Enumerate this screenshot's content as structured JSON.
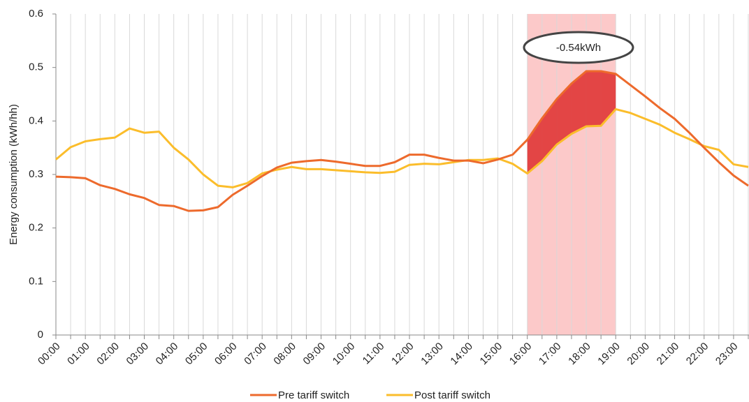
{
  "chart_data": {
    "type": "line",
    "y_label": "Energy consumption (kWh/hh)",
    "categories": [
      "00:00",
      null,
      "01:00",
      null,
      "02:00",
      null,
      "03:00",
      null,
      "04:00",
      null,
      "05:00",
      null,
      "06:00",
      null,
      "07:00",
      null,
      "08:00",
      null,
      "09:00",
      null,
      "10:00",
      null,
      "11:00",
      null,
      "12:00",
      null,
      "13:00",
      null,
      "14:00",
      null,
      "15:00",
      null,
      "16:00",
      null,
      "17:00",
      null,
      "18:00",
      null,
      "19:00",
      null,
      "20:00",
      null,
      "21:00",
      null,
      "22:00",
      null,
      "23:00",
      null
    ],
    "series": [
      {
        "name": "Pre tariff switch",
        "color": "#ed6a2c",
        "values": [
          0.296,
          0.295,
          0.293,
          0.28,
          0.273,
          0.263,
          0.256,
          0.243,
          0.241,
          0.232,
          0.233,
          0.239,
          0.262,
          0.279,
          0.297,
          0.313,
          0.322,
          0.325,
          0.327,
          0.324,
          0.32,
          0.316,
          0.316,
          0.323,
          0.337,
          0.337,
          0.331,
          0.326,
          0.326,
          0.321,
          0.328,
          0.337,
          0.365,
          0.405,
          0.441,
          0.47,
          0.493,
          0.493,
          0.488,
          0.467,
          0.446,
          0.424,
          0.404,
          0.378,
          0.35,
          0.323,
          0.298,
          0.279
        ]
      },
      {
        "name": "Post tariff switch",
        "color": "#fbbd2b",
        "values": [
          0.328,
          0.351,
          0.362,
          0.366,
          0.369,
          0.386,
          0.378,
          0.38,
          0.35,
          0.328,
          0.3,
          0.279,
          0.276,
          0.284,
          0.302,
          0.309,
          0.314,
          0.31,
          0.31,
          0.308,
          0.306,
          0.304,
          0.303,
          0.305,
          0.318,
          0.32,
          0.319,
          0.323,
          0.327,
          0.327,
          0.33,
          0.32,
          0.302,
          0.325,
          0.356,
          0.376,
          0.39,
          0.391,
          0.422,
          0.415,
          0.404,
          0.393,
          0.378,
          0.366,
          0.353,
          0.346,
          0.319,
          0.314
        ]
      }
    ],
    "ylim": [
      0,
      0.6
    ],
    "yticks": [
      0,
      0.1,
      0.2,
      0.3,
      0.4,
      0.5,
      0.6
    ],
    "grid": true,
    "highlight": {
      "from": 32,
      "to": 38,
      "color": "#fbbcbc",
      "fill": "#e03636",
      "label": "-0.54kWh"
    },
    "legend": "bottom"
  }
}
